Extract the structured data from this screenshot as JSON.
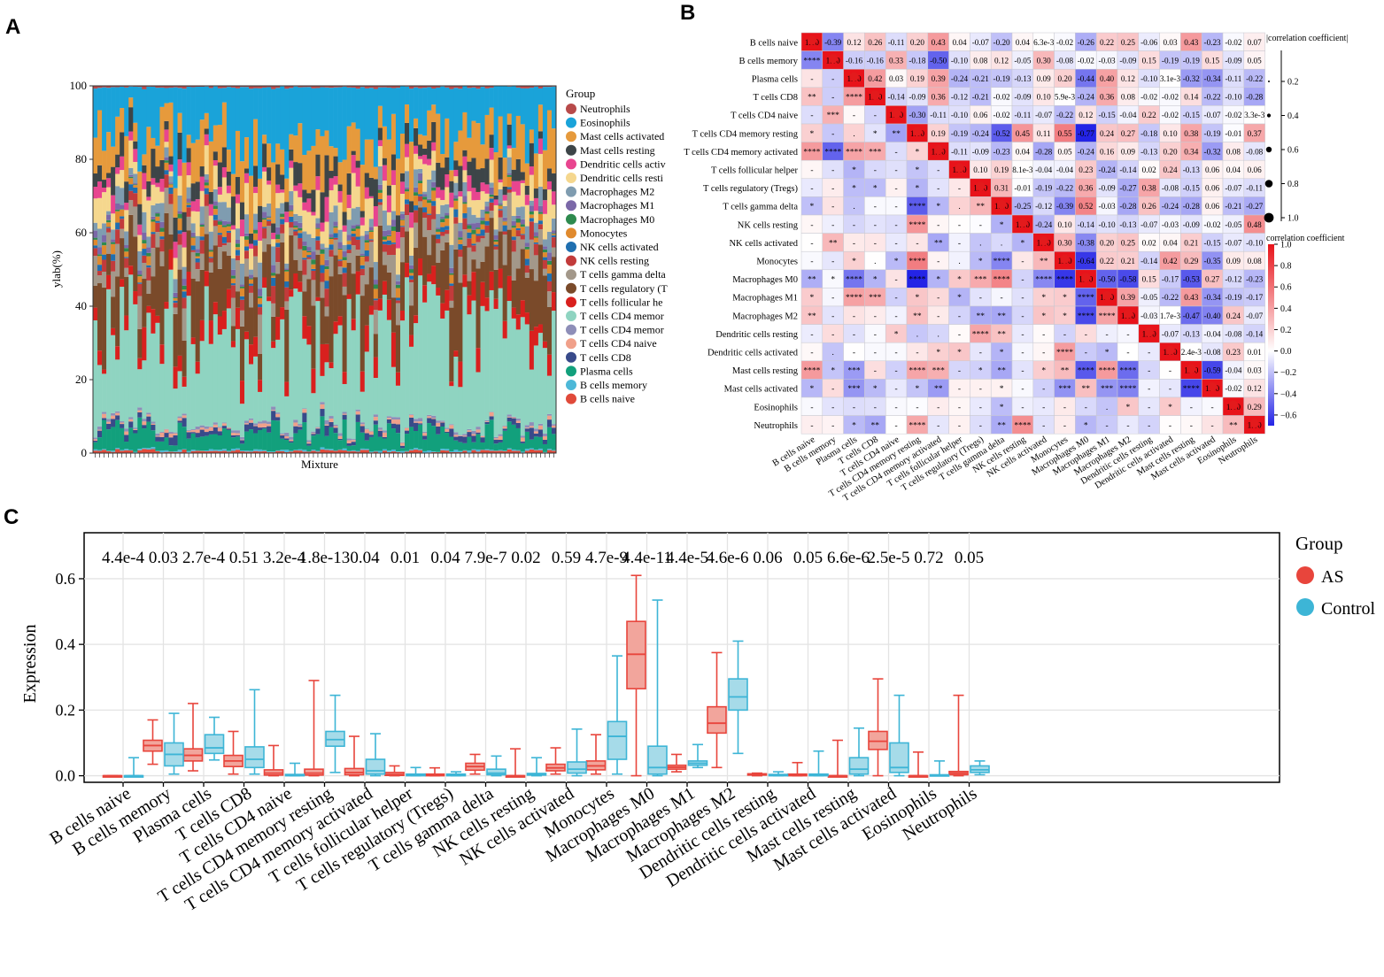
{
  "panel_labels": {
    "a": "A",
    "b": "B",
    "c": "C"
  },
  "chart_data": [
    {
      "type": "bar",
      "subtype": "stacked-proportion",
      "title": "",
      "xlabel": "Mixture",
      "ylabel": "ylab(%)",
      "ylim": [
        0,
        100
      ],
      "yticks": [
        0,
        20,
        40,
        60,
        80,
        100
      ],
      "sample_count": 104,
      "legend_title": "Group",
      "legend_position": "right",
      "legend_entries": [
        {
          "label": "Neutrophils",
          "color": "#b84a4a"
        },
        {
          "label": "Eosinophils",
          "color": "#1aa3d9"
        },
        {
          "label": "Mast cells activated",
          "color": "#e69a3c"
        },
        {
          "label": "Mast cells resting",
          "color": "#3d4548"
        },
        {
          "label": "Dendritic cells activ",
          "color": "#e8458f"
        },
        {
          "label": "Dendritic cells resti",
          "color": "#f5d78e"
        },
        {
          "label": "Macrophages M2",
          "color": "#7f9cb0"
        },
        {
          "label": "Macrophages M1",
          "color": "#7b68a8"
        },
        {
          "label": "Macrophages M0",
          "color": "#2e8a4e"
        },
        {
          "label": "Monocytes",
          "color": "#e08a2e"
        },
        {
          "label": "NK cells activated",
          "color": "#1f6fb0"
        },
        {
          "label": "NK cells resting",
          "color": "#c23b3b"
        },
        {
          "label": "T cells gamma delta",
          "color": "#a3988a"
        },
        {
          "label": "T cells regulatory (T",
          "color": "#7a4a2a"
        },
        {
          "label": "T cells follicular he",
          "color": "#d9201e"
        },
        {
          "label": "T cells CD4 memor",
          "color": "#8fd4c1"
        },
        {
          "label": "T cells CD4 memor",
          "color": "#8e8eb8"
        },
        {
          "label": "T cells CD4 naive",
          "color": "#f0a08a"
        },
        {
          "label": "T cells CD8",
          "color": "#384a8a"
        },
        {
          "label": "Plasma cells",
          "color": "#12a07c"
        },
        {
          "label": "B cells memory",
          "color": "#4db8d8"
        },
        {
          "label": "B cells naive",
          "color": "#e04a3a"
        }
      ]
    },
    {
      "type": "heatmap",
      "subtype": "correlation-matrix",
      "title": "",
      "cell_types": [
        "B cells naive",
        "B cells memory",
        "Plasma cells",
        "T cells CD8",
        "T cells CD4 naive",
        "T cells CD4 memory resting",
        "T cells CD4 memory activated",
        "T cells follicular helper",
        "T cells regulatory (Tregs)",
        "T cells gamma delta",
        "NK cells resting",
        "NK cells activated",
        "Monocytes",
        "Macrophages M0",
        "Macrophages M1",
        "Macrophages M2",
        "Dendritic cells resting",
        "Dendritic cells activated",
        "Mast cells resting",
        "Mast cells activated",
        "Eosinophils",
        "Neutrophils"
      ],
      "upper_values": [
        [
          "1.00",
          "-0.39",
          "0.12",
          "0.26",
          "-0.11",
          "0.20",
          "0.43",
          "0.04",
          "-0.07",
          "-0.20",
          "0.04",
          "6.3e-3",
          "-0.02",
          "-0.26",
          "0.22",
          "0.25",
          "-0.06",
          "0.03",
          "0.43",
          "-0.23",
          "-0.02",
          "0.07"
        ],
        [
          "1.00",
          "-0.16",
          "-0.16",
          "0.33",
          "-0.18",
          "-0.50",
          "-0.10",
          "0.08",
          "0.12",
          "-0.05",
          "0.30",
          "-0.08",
          "-0.02",
          "-0.03",
          "-0.09",
          "0.15",
          "-0.19",
          "-0.19",
          "0.15",
          "-0.09",
          "0.05"
        ],
        [
          "1.00",
          "0.42",
          "0.03",
          "0.19",
          "0.39",
          "-0.24",
          "-0.21",
          "-0.19",
          "-0.13",
          "0.09",
          "0.20",
          "-0.44",
          "0.40",
          "0.12",
          "-0.10",
          "3.1e-3",
          "-0.32",
          "-0.34",
          "-0.11",
          "-0.22"
        ],
        [
          "1.00",
          "-0.14",
          "-0.09",
          "0.36",
          "-0.12",
          "-0.21",
          "-0.02",
          "-0.09",
          "0.10",
          "5.9e-3",
          "-0.24",
          "0.36",
          "0.08",
          "-0.02",
          "-0.02",
          "0.14",
          "-0.22",
          "-0.10",
          "-0.28"
        ],
        [
          "1.00",
          "-0.30",
          "-0.11",
          "-0.10",
          "0.06",
          "-0.02",
          "-0.11",
          "-0.07",
          "-0.22",
          "0.12",
          "-0.15",
          "-0.04",
          "0.22",
          "-0.02",
          "-0.15",
          "-0.07",
          "-0.02",
          "3.3e-3"
        ],
        [
          "1.00",
          "0.19",
          "-0.19",
          "-0.24",
          "-0.52",
          "0.45",
          "0.11",
          "0.55",
          "-0.77",
          "0.24",
          "0.27",
          "-0.18",
          "0.10",
          "0.38",
          "-0.19",
          "-0.01",
          "0.37"
        ],
        [
          "1.00",
          "-0.11",
          "-0.09",
          "-0.23",
          "0.04",
          "-0.28",
          "0.05",
          "-0.24",
          "0.16",
          "0.09",
          "-0.13",
          "0.20",
          "0.34",
          "-0.32",
          "0.08",
          "-0.08"
        ],
        [
          "1.00",
          "0.10",
          "0.19",
          "8.1e-3",
          "-0.04",
          "-0.04",
          "0.23",
          "-0.24",
          "-0.14",
          "0.02",
          "0.24",
          "-0.13",
          "0.06",
          "0.04",
          "0.06"
        ],
        [
          "1.00",
          "0.31",
          "-0.01",
          "-0.19",
          "-0.22",
          "0.36",
          "-0.09",
          "-0.27",
          "0.38",
          "-0.08",
          "-0.15",
          "0.06",
          "-0.07",
          "-0.11"
        ],
        [
          "1.00",
          "-0.25",
          "-0.12",
          "-0.39",
          "0.52",
          "-0.03",
          "-0.28",
          "0.26",
          "-0.24",
          "-0.28",
          "0.06",
          "-0.21",
          "-0.27"
        ],
        [
          "1.00",
          "-0.24",
          "0.10",
          "-0.14",
          "-0.10",
          "-0.13",
          "-0.07",
          "-0.03",
          "-0.09",
          "-0.02",
          "-0.05",
          "0.48"
        ],
        [
          "1.00",
          "0.30",
          "-0.38",
          "0.20",
          "0.25",
          "0.02",
          "0.04",
          "0.21",
          "-0.15",
          "-0.07",
          "-0.10"
        ],
        [
          "1.00",
          "-0.64",
          "0.22",
          "0.21",
          "-0.14",
          "0.42",
          "0.29",
          "-0.35",
          "0.09",
          "0.08"
        ],
        [
          "1.00",
          "-0.50",
          "-0.58",
          "0.15",
          "-0.17",
          "-0.53",
          "0.27",
          "-0.12",
          "-0.23"
        ],
        [
          "1.00",
          "0.39",
          "-0.05",
          "-0.22",
          "0.43",
          "-0.34",
          "-0.19",
          "-0.17"
        ],
        [
          "1.00",
          "-0.03",
          "1.7e-3",
          "-0.47",
          "-0.40",
          "0.24",
          "-0.07"
        ],
        [
          "1.00",
          "-0.07",
          "-0.13",
          "-0.04",
          "-0.08",
          "-0.14"
        ],
        [
          "1.00",
          "2.4e-3",
          "-0.08",
          "0.23",
          "0.01"
        ],
        [
          "1.00",
          "-0.59",
          "-0.04",
          "0.03"
        ],
        [
          "1.00",
          "-0.02",
          "0.12"
        ],
        [
          "1.00",
          "0.29"
        ],
        [
          "1.00"
        ]
      ],
      "lower_marks": [
        [],
        [
          "****"
        ],
        [
          "-",
          "-"
        ],
        [
          "**",
          "-",
          "****"
        ],
        [
          "-",
          "***",
          "-",
          "-"
        ],
        [
          "*",
          "-",
          ".",
          "*",
          "**"
        ],
        [
          "****",
          "****",
          "****",
          "***",
          "-",
          "*"
        ],
        [
          "-",
          "-",
          "*",
          "-",
          "-",
          "*",
          "-"
        ],
        [
          "-",
          "-",
          "*",
          "*",
          "-",
          "*",
          "-",
          "-"
        ],
        [
          "*",
          "-",
          ".",
          "-",
          "-",
          "****",
          "*",
          ".",
          "**"
        ],
        [
          "-",
          "-",
          "-",
          "-",
          "-",
          "****",
          "-",
          "-",
          "-",
          "*"
        ],
        [
          "-",
          "**",
          "-",
          "-",
          "-",
          "-",
          "**",
          "-",
          ".",
          ".",
          "*"
        ],
        [
          "-",
          "-",
          "*",
          ".",
          "*",
          "****",
          "-",
          ".",
          "*",
          "****",
          "-",
          "**"
        ],
        [
          "**",
          "*",
          "****",
          "*",
          "-",
          "****",
          "*",
          "*",
          "***",
          "****",
          "-",
          "****",
          "****"
        ],
        [
          "*",
          "-",
          "****",
          "***",
          "-",
          "*",
          "-",
          "*",
          "-",
          "-",
          "-",
          "*",
          "*",
          "****"
        ],
        [
          "**",
          "-",
          "-",
          "-",
          "-",
          "**",
          "-",
          "-",
          "**",
          "**",
          "-",
          "*",
          "*",
          "****",
          "****"
        ],
        [
          "-",
          "-",
          "-",
          "-",
          "*",
          ".",
          ".",
          "-",
          "****",
          "**",
          "-",
          "-",
          "-",
          "-",
          "-",
          "-"
        ],
        [
          "-",
          ".",
          "-",
          "-",
          "-",
          "-",
          "*",
          "*",
          "-",
          "*",
          "-",
          "-",
          "****",
          "-",
          "*",
          "-",
          "-"
        ],
        [
          "****",
          "*",
          "***",
          "-",
          "-",
          "****",
          "***",
          "-",
          "*",
          "**",
          "-",
          "*",
          "**",
          "****",
          "****",
          "****",
          "-",
          "-"
        ],
        [
          "*",
          "-",
          "***",
          "*",
          "-",
          "*",
          "**",
          "-",
          "-",
          "*",
          "-",
          "-",
          "***",
          "**",
          "***",
          "****",
          "-",
          "-",
          "****"
        ],
        [
          "-",
          "-",
          "-",
          "-",
          "-",
          "-",
          "-",
          "-",
          "-",
          "*",
          "-",
          "-",
          "-",
          "-",
          ".",
          "*",
          "-",
          "*",
          "-",
          "-"
        ],
        [
          "-",
          "-",
          "*",
          "**",
          "-",
          "****",
          "-",
          "-",
          "-",
          "**",
          "****",
          "-",
          "-",
          "*",
          "-",
          "-",
          "-",
          "-",
          "-",
          "-",
          "**"
        ]
      ],
      "colorbar_title": "correlation coefficient",
      "colorbar_ticks": [
        "1.0",
        "0.8",
        "0.6",
        "0.4",
        "0.2",
        "0.0",
        "−0.2",
        "−0.4",
        "−0.6"
      ],
      "colorbar_range": [
        -0.7,
        1.0
      ],
      "size_legend_title": "|correlation coefficient|",
      "size_legend_ticks": [
        "0.2",
        "0.4",
        "0.6",
        "0.8",
        "1.0"
      ],
      "colors": {
        "positive": "#e8131a",
        "negative": "#2424e6",
        "neutral": "#ffffff",
        "dot": "#e31a1c"
      }
    },
    {
      "type": "boxplot",
      "title": "",
      "xlabel": "",
      "ylabel": "Expression",
      "ylim": [
        -0.02,
        0.74
      ],
      "yticks": [
        0.0,
        0.2,
        0.4,
        0.6
      ],
      "ytick_labels": [
        "0.0",
        "0.2",
        "0.4",
        "0.6"
      ],
      "legend_title": "Group",
      "legend_position": "right",
      "series": [
        {
          "name": "AS",
          "color": "#e8453c",
          "fill": "#f2a59c"
        },
        {
          "name": "Control",
          "color": "#3db5d6",
          "fill": "#a6dbe9"
        }
      ],
      "categories": [
        "B cells naive",
        "B cells memory",
        "Plasma cells",
        "T cells CD8",
        "T cells CD4 naive",
        "T cells CD4 memory resting",
        "T cells CD4 memory activated",
        "T cells follicular helper",
        "T cells regulatory (Tregs)",
        "T cells gamma delta",
        "NK cells resting",
        "NK cells activated",
        "Monocytes",
        "Macrophages M0",
        "Macrophages M1",
        "Macrophages M2",
        "Dendritic cells resting",
        "Dendritic cells activated",
        "Mast cells resting",
        "Mast cells activated",
        "Eosinophils",
        "Neutrophils"
      ],
      "pvalues": [
        "4.4e-4",
        "0.03",
        "2.7e-4",
        "0.51",
        "3.2e-4",
        "1.8e-13",
        "0.04",
        "0.01",
        "0.04",
        "7.9e-7",
        "0.02",
        "0.59",
        "4.7e-9",
        "4.4e-11",
        "4.4e-5",
        "4.6e-6",
        "0.06",
        "0.05",
        "6.6e-6",
        "2.5e-5",
        "0.72",
        "0.05"
      ],
      "boxes": {
        "AS": [
          [
            0,
            0,
            0,
            0,
            0
          ],
          [
            0.035,
            0.075,
            0.092,
            0.108,
            0.17
          ],
          [
            0.015,
            0.045,
            0.062,
            0.082,
            0.22
          ],
          [
            0.005,
            0.028,
            0.045,
            0.062,
            0.135
          ],
          [
            0,
            0.002,
            0.008,
            0.018,
            0.092
          ],
          [
            0,
            0.002,
            0.008,
            0.02,
            0.29
          ],
          [
            0,
            0.003,
            0.01,
            0.022,
            0.12
          ],
          [
            0,
            0.001,
            0.004,
            0.01,
            0.03
          ],
          [
            0,
            0,
            0.002,
            0.005,
            0.024
          ],
          [
            0.005,
            0.017,
            0.028,
            0.038,
            0.065
          ],
          [
            0,
            0,
            0,
            0,
            0.082
          ],
          [
            0.005,
            0.015,
            0.024,
            0.035,
            0.085
          ],
          [
            0.005,
            0.018,
            0.03,
            0.045,
            0.125
          ],
          [
            0,
            0.265,
            0.37,
            0.47,
            0.61
          ],
          [
            0.012,
            0.02,
            0.026,
            0.032,
            0.065
          ],
          [
            0.025,
            0.13,
            0.16,
            0.21,
            0.375
          ],
          [
            0,
            0.002,
            0.004,
            0.006,
            0.008
          ],
          [
            0,
            0,
            0.002,
            0.005,
            0.04
          ],
          [
            0,
            0,
            0,
            0,
            0.108
          ],
          [
            0,
            0.08,
            0.105,
            0.135,
            0.295
          ],
          [
            0,
            0,
            0,
            0,
            0.072
          ],
          [
            0,
            0.003,
            0.008,
            0.013,
            0.245
          ]
        ],
        "Control": [
          [
            0,
            0,
            0,
            0,
            0.055
          ],
          [
            0.005,
            0.03,
            0.065,
            0.1,
            0.19
          ],
          [
            0.048,
            0.068,
            0.085,
            0.125,
            0.178
          ],
          [
            0.005,
            0.025,
            0.05,
            0.088,
            0.262
          ],
          [
            0,
            0,
            0.002,
            0.004,
            0.038
          ],
          [
            0.01,
            0.09,
            0.11,
            0.135,
            0.245
          ],
          [
            0,
            0.005,
            0.015,
            0.05,
            0.128
          ],
          [
            0,
            0,
            0.002,
            0.005,
            0.025
          ],
          [
            0,
            0,
            0.002,
            0.005,
            0.012
          ],
          [
            0,
            0.003,
            0.008,
            0.02,
            0.06
          ],
          [
            0,
            0.002,
            0.004,
            0.007,
            0.055
          ],
          [
            0,
            0.008,
            0.02,
            0.042,
            0.142
          ],
          [
            0.005,
            0.05,
            0.12,
            0.165,
            0.365
          ],
          [
            0,
            0.005,
            0.025,
            0.09,
            0.535
          ],
          [
            0.025,
            0.032,
            0.038,
            0.045,
            0.095
          ],
          [
            0.068,
            0.2,
            0.24,
            0.295,
            0.41
          ],
          [
            0,
            0,
            0.002,
            0.004,
            0.012
          ],
          [
            0,
            0,
            0.002,
            0.005,
            0.075
          ],
          [
            0,
            0.005,
            0.02,
            0.055,
            0.145
          ],
          [
            0,
            0.01,
            0.025,
            0.1,
            0.245
          ],
          [
            0,
            0,
            0,
            0.003,
            0.045
          ],
          [
            0.003,
            0.01,
            0.018,
            0.03,
            0.045
          ]
        ]
      }
    }
  ]
}
